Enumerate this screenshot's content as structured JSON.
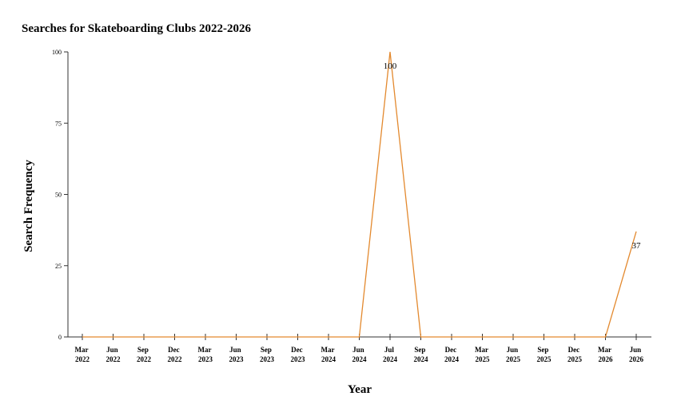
{
  "chart_data": {
    "type": "line",
    "title": "Searches for Skateboarding Clubs 2022-2026",
    "x_label": "Year",
    "y_label": "Search Frequency",
    "categories": [
      "Mar 2022",
      "Jun 2022",
      "Sep 2022",
      "Dec 2022",
      "Mar 2023",
      "Jun 2023",
      "Sep 2023",
      "Dec 2023",
      "Mar 2024",
      "Jun 2024",
      "Jul 2024",
      "Sep 2024",
      "Dec 2024",
      "Mar 2025",
      "Jun 2025",
      "Sep 2025",
      "Dec 2025",
      "Mar 2026",
      "Jun 2026"
    ],
    "values": [
      0,
      0,
      0,
      0,
      0,
      0,
      0,
      0,
      0,
      0,
      100,
      0,
      0,
      0,
      0,
      0,
      0,
      0,
      37
    ],
    "color": "#e3892e",
    "ylim": [
      0,
      100
    ],
    "yticks": [
      0,
      25,
      50,
      75,
      100
    ]
  }
}
